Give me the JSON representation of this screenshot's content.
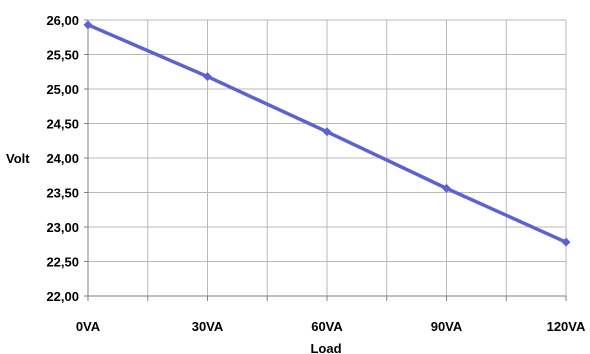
{
  "chart_data": {
    "type": "line",
    "title": "",
    "xlabel": "Load",
    "ylabel": "Volt",
    "categories": [
      "0VA",
      "30VA",
      "60VA",
      "90VA",
      "120VA"
    ],
    "x": [
      0,
      30,
      60,
      90,
      120
    ],
    "xlim": [
      0,
      120
    ],
    "ylim": [
      22.0,
      26.0
    ],
    "y_ticks": [
      "22,00",
      "22,50",
      "23,00",
      "23,50",
      "24,00",
      "24,50",
      "25,00",
      "25,50",
      "26,00"
    ],
    "series": [
      {
        "values": [
          25.93,
          25.18,
          24.38,
          23.56,
          22.78
        ]
      }
    ],
    "grid": true,
    "legend": "none",
    "colors": {
      "line": "#5a63cf",
      "grid": "#b8b8b8",
      "axis": "#808080"
    }
  }
}
